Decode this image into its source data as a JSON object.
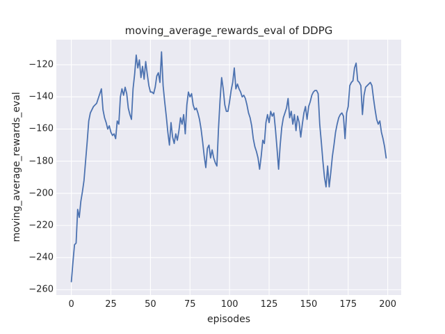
{
  "chart_data": {
    "type": "line",
    "title": "moving_average_rewards_eval of DDPG",
    "xlabel": "episodes",
    "ylabel": "moving_average_rewards_eval",
    "x_ticks": [
      0,
      25,
      50,
      75,
      100,
      125,
      150,
      175,
      200
    ],
    "y_ticks": [
      -260,
      -240,
      -220,
      -200,
      -180,
      -160,
      -140,
      -120
    ],
    "xlim": [
      -9.5,
      208.5
    ],
    "ylim": [
      -263.3,
      -104.4
    ],
    "grid": true,
    "legend_position": "none",
    "style": {
      "plot_background": "#eaeaf2",
      "grid_color": "#ffffff",
      "line_color": "#4c72b0",
      "text_color": "#262626",
      "line_width": 1.8
    },
    "series": [
      {
        "name": "moving_average_rewards_eval",
        "x_start": 0,
        "x_step": 1,
        "y": [
          -255,
          -243,
          -232,
          -231,
          -210,
          -215,
          -205,
          -199,
          -192,
          -180,
          -168,
          -155,
          -150,
          -148,
          -146,
          -145,
          -144,
          -141,
          -138,
          -135,
          -148,
          -153,
          -156,
          -160,
          -158,
          -162,
          -164,
          -163,
          -166,
          -155,
          -157,
          -140,
          -135,
          -139,
          -134,
          -138,
          -147,
          -151,
          -154,
          -135,
          -126,
          -114,
          -122,
          -117,
          -128,
          -121,
          -129,
          -118,
          -126,
          -133,
          -137,
          -137,
          -138,
          -134,
          -127,
          -125,
          -131,
          -112,
          -133,
          -143,
          -152,
          -162,
          -170,
          -156,
          -165,
          -169,
          -163,
          -167,
          -161,
          -153,
          -157,
          -151,
          -163,
          -145,
          -137,
          -140,
          -138,
          -145,
          -148,
          -147,
          -150,
          -154,
          -160,
          -168,
          -177,
          -184,
          -172,
          -170,
          -178,
          -173,
          -178,
          -181,
          -183,
          -160,
          -142,
          -128,
          -135,
          -145,
          -149,
          -149,
          -143,
          -136,
          -131,
          -122,
          -135,
          -132,
          -135,
          -137,
          -140,
          -139,
          -141,
          -145,
          -150,
          -153,
          -158,
          -166,
          -171,
          -174,
          -178,
          -185,
          -177,
          -167,
          -169,
          -156,
          -151,
          -156,
          -149,
          -152,
          -150,
          -160,
          -172,
          -185,
          -170,
          -159,
          -153,
          -150,
          -147,
          -141,
          -153,
          -149,
          -157,
          -151,
          -161,
          -152,
          -156,
          -165,
          -157,
          -150,
          -146,
          -154,
          -146,
          -143,
          -139,
          -137,
          -136,
          -136,
          -138,
          -157,
          -168,
          -180,
          -190,
          -196,
          -183,
          -196,
          -187,
          -177,
          -170,
          -162,
          -157,
          -153,
          -151,
          -150,
          -152,
          -166,
          -150,
          -146,
          -133,
          -131,
          -130,
          -122,
          -119,
          -130,
          -131,
          -133,
          -151,
          -139,
          -134,
          -133,
          -132,
          -131,
          -133,
          -141,
          -148,
          -154,
          -157,
          -155,
          -162,
          -166,
          -171,
          -178
        ]
      }
    ]
  }
}
